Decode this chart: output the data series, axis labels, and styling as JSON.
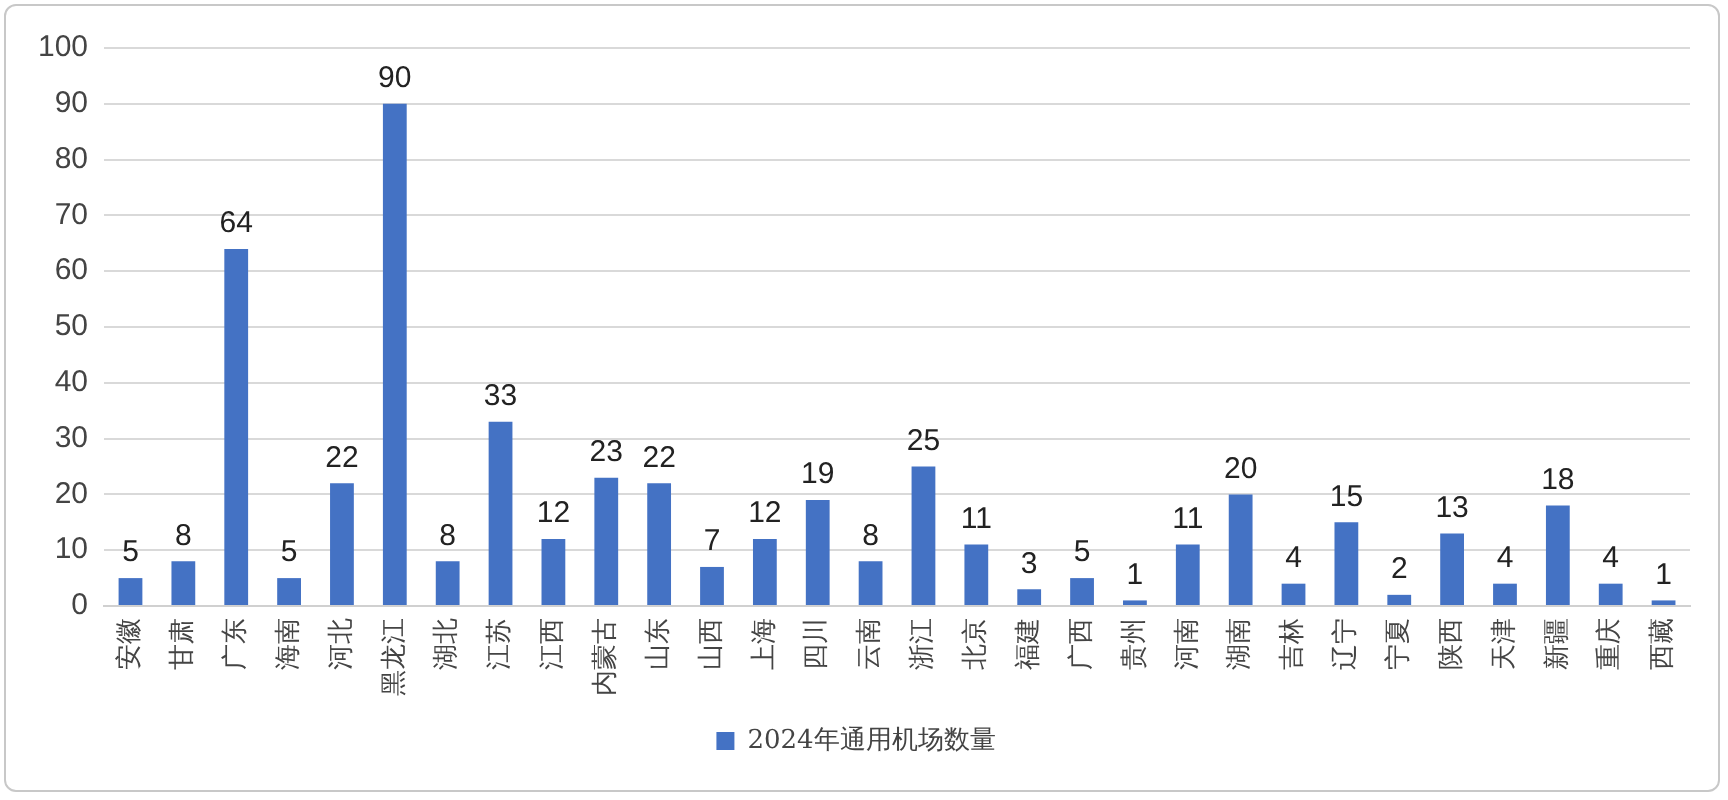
{
  "chart_data": {
    "type": "bar",
    "categories": [
      "安徽",
      "甘肃",
      "广东",
      "海南",
      "河北",
      "黑龙江",
      "湖北",
      "江苏",
      "江西",
      "内蒙古",
      "山东",
      "山西",
      "上海",
      "四川",
      "云南",
      "浙江",
      "北京",
      "福建",
      "广西",
      "贵州",
      "河南",
      "湖南",
      "吉林",
      "辽宁",
      "宁夏",
      "陕西",
      "天津",
      "新疆",
      "重庆",
      "西藏"
    ],
    "series": [
      {
        "name": "2024年通用机场数量",
        "color": "#4472c4",
        "values": [
          5,
          8,
          64,
          5,
          22,
          90,
          8,
          33,
          12,
          23,
          22,
          7,
          12,
          19,
          8,
          25,
          11,
          3,
          5,
          1,
          11,
          20,
          4,
          15,
          2,
          13,
          4,
          18,
          4,
          1
        ]
      }
    ],
    "ylim": [
      0,
      100
    ],
    "yticks": [
      0,
      10,
      20,
      30,
      40,
      50,
      60,
      70,
      80,
      90,
      100
    ],
    "grid": "y",
    "legend": "bottom",
    "data_labels": true
  }
}
